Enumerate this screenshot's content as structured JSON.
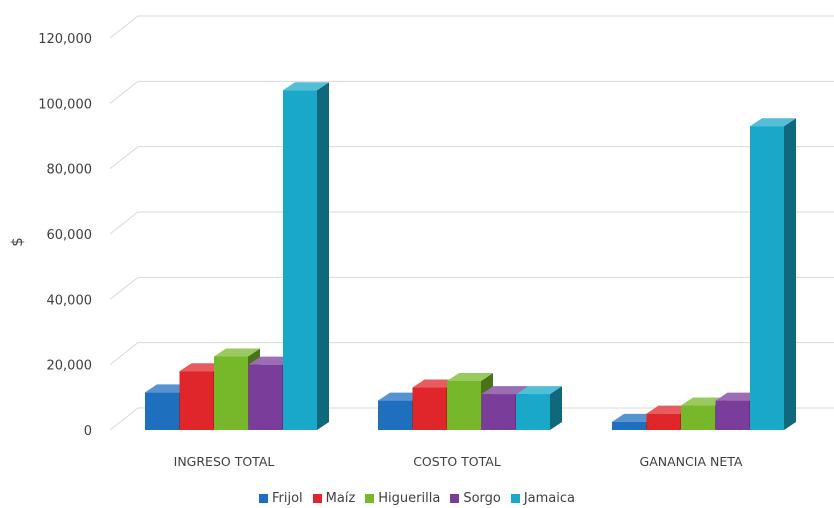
{
  "chart_data": {
    "type": "bar",
    "ylabel": "$",
    "ylim": [
      0,
      120000
    ],
    "yticks": [
      "0",
      "20,000",
      "40,000",
      "60,000",
      "80,000",
      "100,000",
      "120,000"
    ],
    "ytick_values": [
      0,
      20000,
      40000,
      60000,
      80000,
      100000,
      120000
    ],
    "grid": true,
    "legend_position": "bottom",
    "three_d": true,
    "categories": [
      "INGRESO TOTAL",
      "COSTO TOTAL",
      "GANANCIA NETA"
    ],
    "series": [
      {
        "name": "Frijol",
        "color": "#1f6fbf",
        "values": [
          11500,
          9000,
          2500
        ]
      },
      {
        "name": "Maíz",
        "color": "#e0262a",
        "values": [
          18000,
          13000,
          5000
        ]
      },
      {
        "name": "Higuerilla",
        "color": "#77b82a",
        "values": [
          22500,
          15000,
          7500
        ]
      },
      {
        "name": "Sorgo",
        "color": "#7a3e9a",
        "values": [
          20000,
          11000,
          9000
        ]
      },
      {
        "name": "Jamaica",
        "color": "#1aa8c8",
        "values": [
          104000,
          11000,
          93000
        ]
      }
    ]
  }
}
